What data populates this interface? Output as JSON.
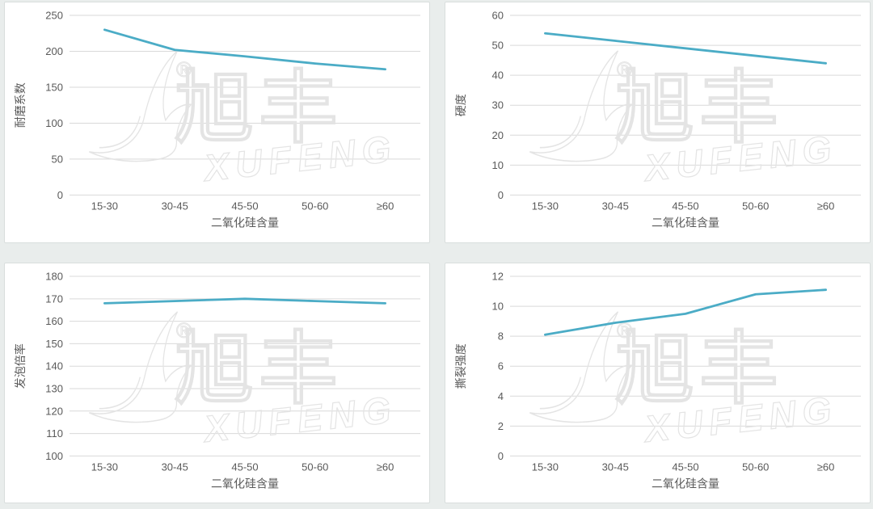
{
  "page": {
    "background": "#e9edec",
    "panel_background": "#ffffff",
    "panel_border": "#d9dedd"
  },
  "style": {
    "line_color": "#4bacc6",
    "grid_color": "#d9d9d9",
    "tick_color": "#595959"
  },
  "watermark": {
    "cjk": "旭丰",
    "latin": "XUFENG",
    "registered": "®",
    "color": "#e4e4e4"
  },
  "chart_data": [
    {
      "type": "line",
      "position": "top-left",
      "title": "",
      "ylabel": "耐磨系数",
      "xlabel": "二氧化硅含量",
      "categories": [
        "15-30",
        "30-45",
        "45-50",
        "50-60",
        "≥60"
      ],
      "values": [
        230,
        202,
        193,
        183,
        175
      ],
      "ylim": [
        0,
        250
      ],
      "yticks": [
        0,
        50,
        100,
        150,
        200,
        250
      ],
      "grid": true,
      "legend": "none"
    },
    {
      "type": "line",
      "position": "top-right",
      "title": "",
      "ylabel": "硬度",
      "xlabel": "二氧化硅含量",
      "categories": [
        "15-30",
        "30-45",
        "45-50",
        "50-60",
        "≥60"
      ],
      "values": [
        54,
        51.5,
        49,
        46.5,
        44
      ],
      "ylim": [
        0,
        60
      ],
      "yticks": [
        0,
        10,
        20,
        30,
        40,
        50,
        60
      ],
      "grid": true,
      "legend": "none"
    },
    {
      "type": "line",
      "position": "bottom-left",
      "title": "",
      "ylabel": "发泡倍率",
      "xlabel": "二氧化硅含量",
      "categories": [
        "15-30",
        "30-45",
        "45-50",
        "50-60",
        "≥60"
      ],
      "values": [
        168,
        169,
        170,
        169,
        168
      ],
      "ylim": [
        100,
        180
      ],
      "yticks": [
        100,
        110,
        120,
        130,
        140,
        150,
        160,
        170,
        180
      ],
      "grid": true,
      "legend": "none"
    },
    {
      "type": "line",
      "position": "bottom-right",
      "title": "",
      "ylabel": "撕裂强度",
      "xlabel": "二氧化硅含量",
      "categories": [
        "15-30",
        "30-45",
        "45-50",
        "50-60",
        "≥60"
      ],
      "values": [
        8.1,
        8.9,
        9.5,
        10.8,
        11.1
      ],
      "ylim": [
        0,
        12
      ],
      "yticks": [
        0,
        2,
        4,
        6,
        8,
        10,
        12
      ],
      "grid": true,
      "legend": "none"
    }
  ]
}
